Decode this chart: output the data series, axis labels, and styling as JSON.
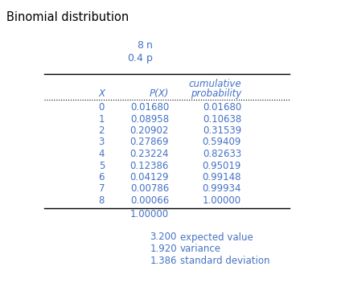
{
  "title": "Binomial distribution",
  "n": "8",
  "p": "0.4",
  "X": [
    0,
    1,
    2,
    3,
    4,
    5,
    6,
    7,
    8
  ],
  "PX": [
    "0.01680",
    "0.08958",
    "0.20902",
    "0.27869",
    "0.23224",
    "0.12386",
    "0.04129",
    "0.00786",
    "0.00066"
  ],
  "cum_prob": [
    "0.01680",
    "0.10638",
    "0.31539",
    "0.59409",
    "0.82633",
    "0.95019",
    "0.99148",
    "0.99934",
    "1.00000"
  ],
  "total": "1.00000",
  "expected_value": "3.200",
  "variance": "1.920",
  "std_dev": "1.386",
  "text_color": "#4472C4",
  "title_color": "#000000"
}
